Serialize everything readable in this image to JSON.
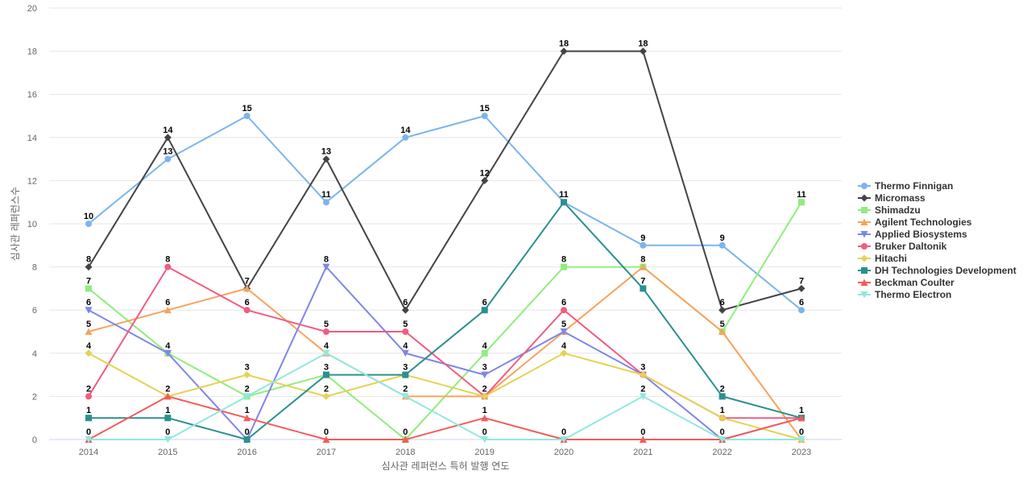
{
  "chart_data": {
    "type": "line",
    "title": "",
    "xlabel": "심사관 레퍼런스 특허 발행 연도",
    "ylabel": "심사관 레퍼런스수",
    "ylim": [
      0,
      20
    ],
    "yticks": [
      0,
      2,
      4,
      6,
      8,
      10,
      12,
      14,
      16,
      18,
      20
    ],
    "grid": true,
    "legend_position": "right",
    "categories": [
      "2014",
      "2015",
      "2016",
      "2017",
      "2018",
      "2019",
      "2020",
      "2021",
      "2022",
      "2023"
    ],
    "series": [
      {
        "name": "Thermo Finnigan",
        "color": "#7cb5ec",
        "marker": "circle",
        "values": [
          10,
          13,
          15,
          11,
          14,
          15,
          11,
          9,
          9,
          6
        ]
      },
      {
        "name": "Micromass",
        "color": "#434348",
        "marker": "diamond",
        "values": [
          8,
          14,
          7,
          13,
          6,
          12,
          18,
          18,
          6,
          7
        ]
      },
      {
        "name": "Shimadzu",
        "color": "#90ed7d",
        "marker": "square",
        "values": [
          7,
          4,
          2,
          3,
          0,
          4,
          8,
          8,
          5,
          11
        ]
      },
      {
        "name": "Agilent Technologies",
        "color": "#f7a35c",
        "marker": "triangle",
        "values": [
          5,
          6,
          7,
          4,
          2,
          2,
          5,
          8,
          5,
          0
        ]
      },
      {
        "name": "Applied Biosystems",
        "color": "#8085e9",
        "marker": "triangle-down",
        "values": [
          6,
          4,
          0,
          8,
          4,
          3,
          5,
          3,
          0,
          1
        ]
      },
      {
        "name": "Bruker Daltonik",
        "color": "#f15c80",
        "marker": "circle",
        "values": [
          2,
          8,
          6,
          5,
          5,
          2,
          6,
          3,
          1,
          1
        ]
      },
      {
        "name": "Hitachi",
        "color": "#e4d354",
        "marker": "diamond",
        "values": [
          4,
          2,
          3,
          2,
          3,
          2,
          4,
          3,
          1,
          0
        ]
      },
      {
        "name": "DH Technologies Development",
        "color": "#2b908f",
        "marker": "square",
        "values": [
          1,
          1,
          0,
          3,
          3,
          6,
          11,
          7,
          2,
          1
        ]
      },
      {
        "name": "Beckman Coulter",
        "color": "#f45b5b",
        "marker": "triangle",
        "values": [
          0,
          2,
          1,
          0,
          0,
          1,
          0,
          0,
          0,
          1
        ]
      },
      {
        "name": "Thermo Electron",
        "color": "#91e8e1",
        "marker": "triangle-down",
        "values": [
          0,
          0,
          2,
          4,
          2,
          0,
          0,
          2,
          0,
          0
        ]
      }
    ],
    "labeled_series_note": "",
    "data_labels": [
      {
        "series": "Thermo Finnigan",
        "values": [
          10,
          13,
          15,
          11,
          14,
          15,
          11,
          9,
          9,
          6
        ]
      },
      {
        "series": "Micromass",
        "values": [
          8,
          14,
          7,
          13,
          6,
          12,
          18,
          18,
          6,
          7
        ]
      }
    ]
  }
}
